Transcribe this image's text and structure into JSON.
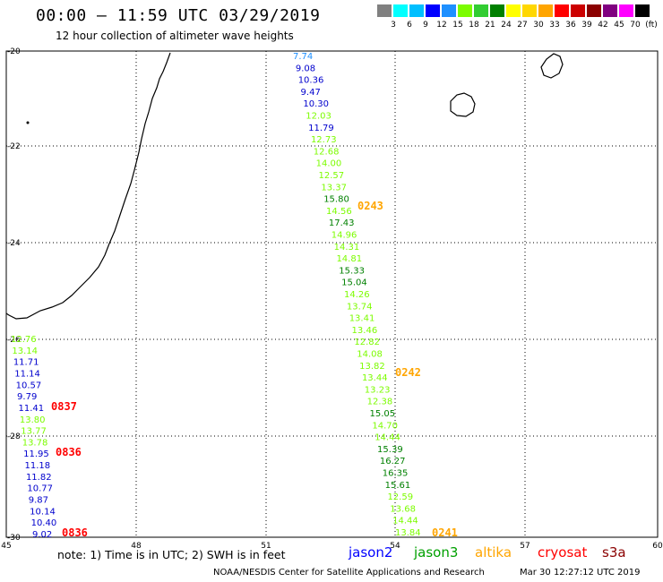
{
  "header": {
    "title": "00:00 – 11:59 UTC 03/29/2019",
    "subtitle": "12 hour collection of altimeter wave heights"
  },
  "scale": {
    "colors": [
      "#808080",
      "#00ffff",
      "#00bfff",
      "#0000ff",
      "#1e90ff",
      "#7cfc00",
      "#32cd32",
      "#008000",
      "#ffff00",
      "#ffd700",
      "#ffa500",
      "#ff0000",
      "#cc0000",
      "#8b0000",
      "#800080",
      "#ff00ff",
      "#000000"
    ],
    "ticks": [
      "3",
      "6",
      "9",
      "12",
      "15",
      "18",
      "21",
      "24",
      "27",
      "30",
      "33",
      "36",
      "39",
      "42",
      "45",
      "70",
      "(ft)"
    ]
  },
  "axes": {
    "lon_ticks": [
      "45",
      "48",
      "51",
      "54",
      "57",
      "60"
    ],
    "lat_ticks": [
      "-20",
      "-22",
      "-24",
      "-26",
      "-28",
      "-30"
    ]
  },
  "tracks": [
    {
      "satellite": "jason3",
      "points": [
        {
          "v": "7.74",
          "c": "#1e90ff"
        },
        {
          "v": "9.08",
          "c": "#0000cd"
        },
        {
          "v": "10.36",
          "c": "#0000cd"
        },
        {
          "v": "9.47",
          "c": "#0000cd"
        },
        {
          "v": "10.30",
          "c": "#0000cd"
        },
        {
          "v": "12.03",
          "c": "#7cfc00"
        },
        {
          "v": "11.79",
          "c": "#0000cd"
        },
        {
          "v": "12.73",
          "c": "#7cfc00"
        },
        {
          "v": "12.68",
          "c": "#7cfc00"
        },
        {
          "v": "14.00",
          "c": "#7cfc00"
        },
        {
          "v": "12.57",
          "c": "#7cfc00"
        },
        {
          "v": "13.37",
          "c": "#7cfc00"
        },
        {
          "v": "15.80",
          "c": "#008000"
        },
        {
          "v": "14.56",
          "c": "#7cfc00"
        },
        {
          "v": "17.43",
          "c": "#008000"
        },
        {
          "v": "14.96",
          "c": "#7cfc00"
        },
        {
          "v": "14.31",
          "c": "#7cfc00"
        },
        {
          "v": "14.81",
          "c": "#7cfc00"
        },
        {
          "v": "15.33",
          "c": "#008000"
        },
        {
          "v": "15.04",
          "c": "#008000"
        },
        {
          "v": "14.26",
          "c": "#7cfc00"
        },
        {
          "v": "13.74",
          "c": "#7cfc00"
        },
        {
          "v": "13.41",
          "c": "#7cfc00"
        },
        {
          "v": "13.46",
          "c": "#7cfc00"
        },
        {
          "v": "12.82",
          "c": "#7cfc00"
        },
        {
          "v": "14.08",
          "c": "#7cfc00"
        },
        {
          "v": "13.82",
          "c": "#7cfc00"
        },
        {
          "v": "13.44",
          "c": "#7cfc00"
        },
        {
          "v": "13.23",
          "c": "#7cfc00"
        },
        {
          "v": "12.38",
          "c": "#7cfc00"
        },
        {
          "v": "15.05",
          "c": "#008000"
        },
        {
          "v": "14.70",
          "c": "#7cfc00"
        },
        {
          "v": "14.44",
          "c": "#7cfc00"
        },
        {
          "v": "15.39",
          "c": "#008000"
        },
        {
          "v": "16.27",
          "c": "#008000"
        },
        {
          "v": "16.35",
          "c": "#008000"
        },
        {
          "v": "15.61",
          "c": "#008000"
        },
        {
          "v": "12.59",
          "c": "#7cfc00"
        },
        {
          "v": "13.68",
          "c": "#7cfc00"
        },
        {
          "v": "14.44",
          "c": "#7cfc00"
        },
        {
          "v": "13.84",
          "c": "#7cfc00"
        }
      ]
    },
    {
      "satellite": "cryosat",
      "points": [
        {
          "v": "12.76",
          "c": "#7cfc00"
        },
        {
          "v": "13.14",
          "c": "#7cfc00"
        },
        {
          "v": "11.71",
          "c": "#0000cd"
        },
        {
          "v": "11.14",
          "c": "#0000cd"
        },
        {
          "v": "10.57",
          "c": "#0000cd"
        },
        {
          "v": "9.79",
          "c": "#0000cd"
        },
        {
          "v": "11.41",
          "c": "#0000cd"
        },
        {
          "v": "13.80",
          "c": "#7cfc00"
        },
        {
          "v": "13.77",
          "c": "#7cfc00"
        },
        {
          "v": "13.78",
          "c": "#7cfc00"
        },
        {
          "v": "11.95",
          "c": "#0000cd"
        },
        {
          "v": "11.18",
          "c": "#0000cd"
        },
        {
          "v": "11.82",
          "c": "#0000cd"
        },
        {
          "v": "10.77",
          "c": "#0000cd"
        },
        {
          "v": "9.87",
          "c": "#0000cd"
        },
        {
          "v": "10.14",
          "c": "#0000cd"
        },
        {
          "v": "10.40",
          "c": "#0000cd"
        },
        {
          "v": "9.02",
          "c": "#0000cd"
        }
      ]
    }
  ],
  "time_labels": [
    {
      "t": "0243",
      "c": "#ffa500"
    },
    {
      "t": "0242",
      "c": "#ffa500"
    },
    {
      "t": "0241",
      "c": "#ffa500"
    },
    {
      "t": "0837",
      "c": "#ff0000"
    },
    {
      "t": "0836",
      "c": "#ff0000"
    },
    {
      "t": "0836",
      "c": "#ff0000"
    }
  ],
  "footer": {
    "note": "note: 1) Time is in UTC; 2) SWH is in feet",
    "legend": [
      {
        "name": "jason2",
        "color": "#0000ff"
      },
      {
        "name": "jason3",
        "color": "#00a000"
      },
      {
        "name": "altika",
        "color": "#ffa500"
      },
      {
        "name": "cryosat",
        "color": "#ff0000"
      },
      {
        "name": "s3a",
        "color": "#8b0000"
      }
    ],
    "credit": "NOAA/NESDIS Center for Satellite Applications and Research",
    "timestamp": "Mar 30 12:27:12 UTC 2019"
  }
}
